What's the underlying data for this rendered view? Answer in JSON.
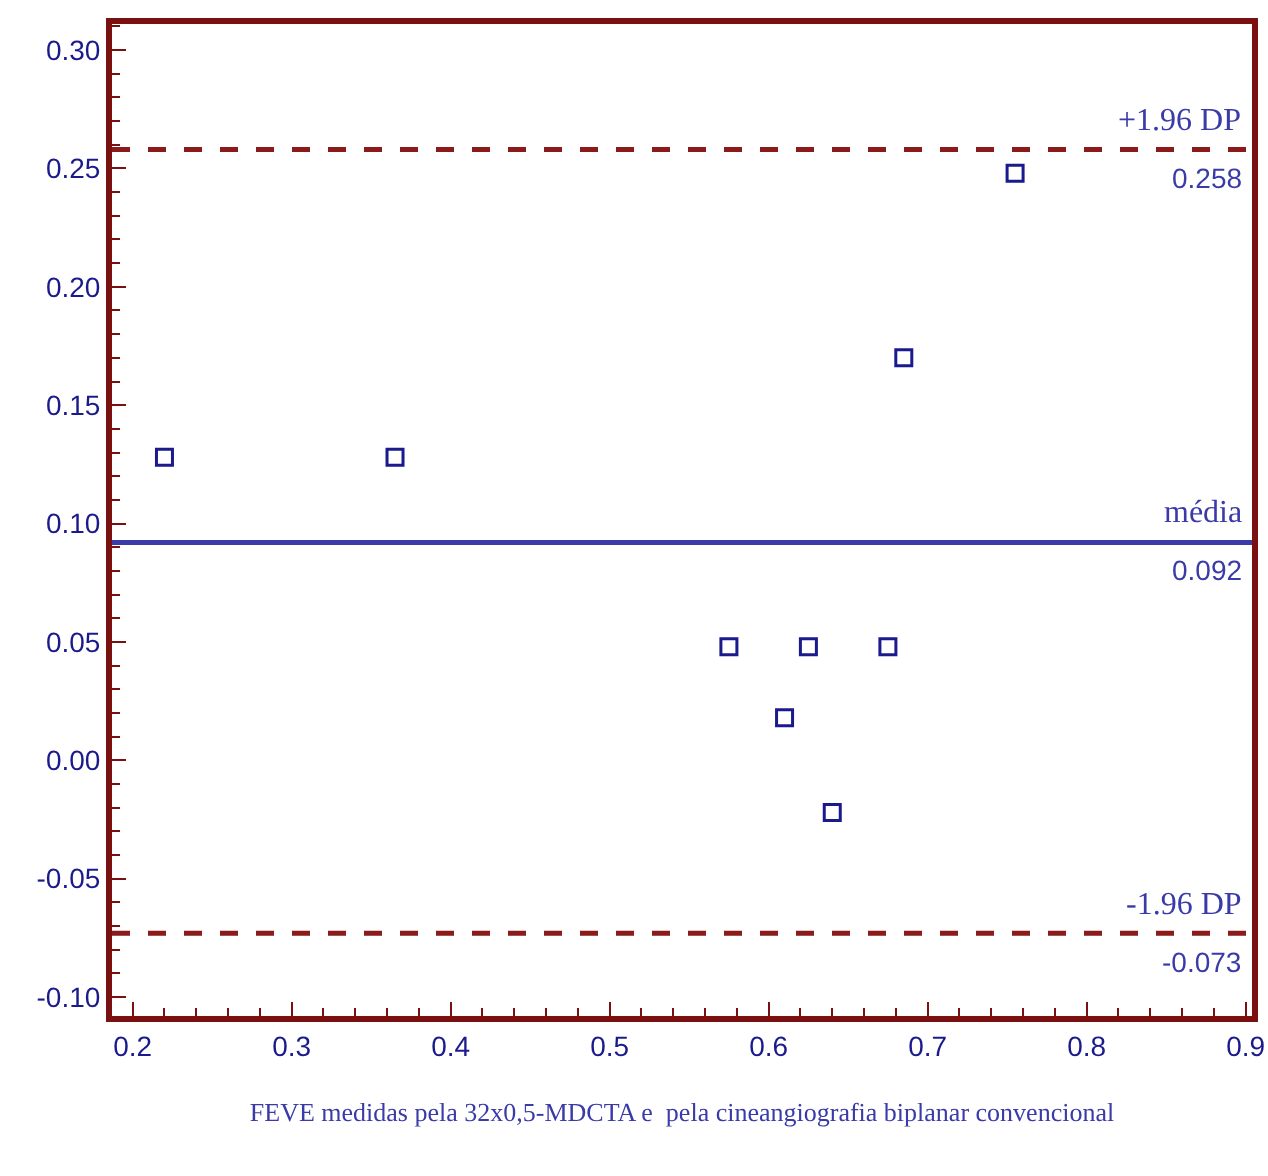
{
  "chart_data": {
    "type": "scatter",
    "xlabel": "FEVE medidas pela 32x0,5-MDCTA e  pela cineangiografia biplanar convencional",
    "x": [
      0.22,
      0.365,
      0.575,
      0.61,
      0.625,
      0.64,
      0.675,
      0.685,
      0.755
    ],
    "series": [
      {
        "color": "#1a1a8c",
        "values": [
          0.128,
          0.128,
          0.048,
          0.018,
          0.048,
          -0.022,
          0.048,
          0.17,
          0.248
        ]
      }
    ],
    "marker": "square",
    "grid": false,
    "xlim": [
      0.187,
      0.904
    ],
    "xticks": [
      0.2,
      0.3,
      0.4,
      0.5,
      0.6,
      0.7,
      0.8,
      0.9
    ],
    "ylim": [
      -0.108,
      0.311
    ],
    "yticks": [
      {
        "value": -0.1,
        "label": "-0.10"
      },
      {
        "value": -0.05,
        "label": "-0.05"
      },
      {
        "value": 0,
        "label": "0.00"
      },
      {
        "value": 0.05,
        "label": "0.05"
      },
      {
        "value": 0.1,
        "label": "0.10"
      },
      {
        "value": 0.15,
        "label": "0.15"
      },
      {
        "value": 0.2,
        "label": "0.20"
      },
      {
        "value": 0.25,
        "label": "0.25"
      },
      {
        "value": 0.3,
        "label": "0.30"
      }
    ],
    "ref_lines": [
      {
        "axis": "y",
        "value": 0.258,
        "label": "+1.96 DP",
        "color": "#8b1a1a",
        "line_style": "dashed"
      },
      {
        "axis": "y",
        "value": 0.092,
        "label": "média",
        "color": "#3a3aa8",
        "line_style": "solid"
      },
      {
        "axis": "y",
        "value": -0.073,
        "label": "-1.96 DP",
        "color": "#8b1a1a",
        "line_style": "dashed"
      }
    ],
    "annotations": [
      {
        "text": "0.258",
        "y": 0.258
      },
      {
        "text": "0.092",
        "y": 0.092
      },
      {
        "text": "-0.073",
        "y": -0.073
      }
    ]
  }
}
